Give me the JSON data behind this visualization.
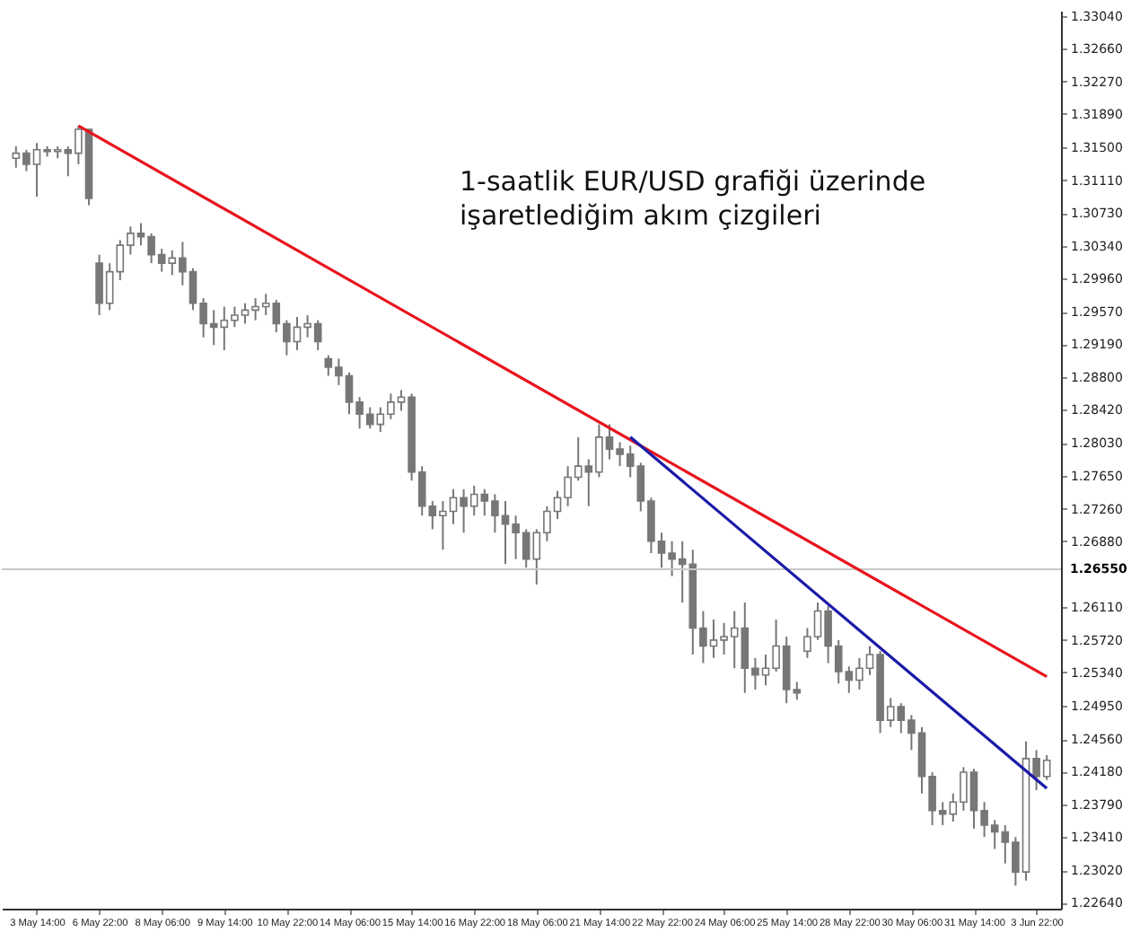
{
  "chart_data": {
    "type": "candlestick",
    "color": "#777777",
    "annotations": [
      "1-saatlik EUR/USD grafiği üzerinde\nişaretlediğim akım çizgileri"
    ],
    "categories": [
      null,
      null,
      "3 May 14:00",
      null,
      null,
      null,
      null,
      null,
      "6 May 22:00",
      null,
      null,
      null,
      null,
      null,
      "8 May 06:00",
      null,
      null,
      null,
      null,
      null,
      "9 May 14:00",
      null,
      null,
      null,
      null,
      null,
      "10 May 22:00",
      null,
      null,
      null,
      null,
      null,
      "14 May 06:00",
      null,
      null,
      null,
      null,
      null,
      "15 May 14:00",
      null,
      null,
      null,
      null,
      null,
      "16 May 22:00",
      null,
      null,
      null,
      null,
      null,
      "18 May 06:00",
      null,
      null,
      null,
      null,
      null,
      "21 May 14:00",
      null,
      null,
      null,
      null,
      null,
      "22 May 22:00",
      null,
      null,
      null,
      null,
      null,
      "24 May 06:00",
      null,
      null,
      null,
      null,
      null,
      "25 May 14:00",
      null,
      null,
      null,
      null,
      null,
      "28 May 22:00",
      null,
      null,
      null,
      null,
      null,
      "30 May 06:00",
      null,
      null,
      null,
      null,
      null,
      "31 May 14:00",
      null,
      null,
      null,
      null,
      null,
      "3 Jun 22:00",
      null
    ],
    "ohlc": [
      [
        1.3137,
        1.3151,
        1.3126,
        1.3143
      ],
      [
        1.3143,
        1.3147,
        1.3122,
        1.313
      ],
      [
        1.313,
        1.3155,
        1.3092,
        1.3147
      ],
      [
        1.3147,
        1.3151,
        1.3139,
        1.3145
      ],
      [
        1.3145,
        1.3151,
        1.3137,
        1.3147
      ],
      [
        1.3147,
        1.3151,
        1.3116,
        1.3143
      ],
      [
        1.3143,
        1.3175,
        1.313,
        1.3171
      ],
      [
        1.3171,
        1.3171,
        1.3082,
        1.309
      ],
      [
        1.3014,
        1.3024,
        1.2953,
        1.2967
      ],
      [
        1.2967,
        1.3014,
        1.2959,
        1.3004
      ],
      [
        1.3004,
        1.3041,
        1.2994,
        1.3035
      ],
      [
        1.3035,
        1.3057,
        1.3024,
        1.3049
      ],
      [
        1.3049,
        1.3061,
        1.3035,
        1.3045
      ],
      [
        1.3045,
        1.3049,
        1.3014,
        1.3024
      ],
      [
        1.3024,
        1.3031,
        1.3004,
        1.3014
      ],
      [
        1.3014,
        1.3029,
        1.3,
        1.302
      ],
      [
        1.302,
        1.3039,
        1.2988,
        1.3004
      ],
      [
        1.3004,
        1.3008,
        1.2959,
        1.2967
      ],
      [
        1.2967,
        1.2973,
        1.2927,
        1.2943
      ],
      [
        1.2943,
        1.2959,
        1.2918,
        1.2939
      ],
      [
        1.2939,
        1.2963,
        1.2912,
        1.2947
      ],
      [
        1.2947,
        1.2963,
        1.2939,
        1.2953
      ],
      [
        1.2953,
        1.2967,
        1.2943,
        1.2959
      ],
      [
        1.2959,
        1.2973,
        1.2947,
        1.2963
      ],
      [
        1.2963,
        1.2978,
        1.2953,
        1.2967
      ],
      [
        1.2967,
        1.2971,
        1.2933,
        1.2943
      ],
      [
        1.2943,
        1.2947,
        1.2906,
        1.2922
      ],
      [
        1.2922,
        1.2951,
        1.2912,
        1.2939
      ],
      [
        1.2939,
        1.2953,
        1.2927,
        1.2943
      ],
      [
        1.2943,
        1.2947,
        1.2912,
        1.2922
      ],
      [
        1.2902,
        1.2906,
        1.2882,
        1.2892
      ],
      [
        1.2892,
        1.2902,
        1.2871,
        1.2882
      ],
      [
        1.2882,
        1.2886,
        1.2837,
        1.2851
      ],
      [
        1.2851,
        1.2857,
        1.282,
        1.2837
      ],
      [
        1.2837,
        1.2845,
        1.282,
        1.2825
      ],
      [
        1.2825,
        1.2845,
        1.2816,
        1.2837
      ],
      [
        1.2837,
        1.2861,
        1.2831,
        1.2851
      ],
      [
        1.2851,
        1.2865,
        1.2841,
        1.2857
      ],
      [
        1.2857,
        1.2861,
        1.2759,
        1.2769
      ],
      [
        1.2769,
        1.2776,
        1.2718,
        1.2729
      ],
      [
        1.2729,
        1.2735,
        1.2702,
        1.2718
      ],
      [
        1.2718,
        1.2735,
        1.2678,
        1.2723
      ],
      [
        1.2723,
        1.2749,
        1.2708,
        1.2739
      ],
      [
        1.2739,
        1.2749,
        1.2698,
        1.2729
      ],
      [
        1.2729,
        1.2753,
        1.2718,
        1.2743
      ],
      [
        1.2743,
        1.2749,
        1.2718,
        1.2735
      ],
      [
        1.2735,
        1.2743,
        1.2698,
        1.2718
      ],
      [
        1.2718,
        1.2735,
        1.2661,
        1.2708
      ],
      [
        1.2708,
        1.2718,
        1.2667,
        1.2698
      ],
      [
        1.2698,
        1.2702,
        1.2657,
        1.2667
      ],
      [
        1.2667,
        1.2702,
        1.2637,
        1.2698
      ],
      [
        1.2698,
        1.2729,
        1.2688,
        1.2723
      ],
      [
        1.2723,
        1.2747,
        1.2714,
        1.2739
      ],
      [
        1.2739,
        1.2776,
        1.2729,
        1.2763
      ],
      [
        1.2763,
        1.281,
        1.2759,
        1.2776
      ],
      [
        1.2776,
        1.2784,
        1.2729,
        1.2769
      ],
      [
        1.2769,
        1.2825,
        1.2763,
        1.281
      ],
      [
        1.281,
        1.2825,
        1.2784,
        1.2796
      ],
      [
        1.2796,
        1.2804,
        1.2776,
        1.279
      ],
      [
        1.279,
        1.28,
        1.2763,
        1.2776
      ],
      [
        1.2776,
        1.278,
        1.2723,
        1.2735
      ],
      [
        1.2735,
        1.2739,
        1.2674,
        1.2688
      ],
      [
        1.2688,
        1.2698,
        1.2657,
        1.2674
      ],
      [
        1.2674,
        1.2688,
        1.2647,
        1.2667
      ],
      [
        1.2667,
        1.2688,
        1.2616,
        1.2661
      ],
      [
        1.2661,
        1.2678,
        1.2555,
        1.2586
      ],
      [
        1.2586,
        1.2606,
        1.2545,
        1.2565
      ],
      [
        1.2565,
        1.2596,
        1.2551,
        1.2572
      ],
      [
        1.2572,
        1.2592,
        1.2555,
        1.2576
      ],
      [
        1.2576,
        1.2606,
        1.2539,
        1.2586
      ],
      [
        1.2586,
        1.2616,
        1.251,
        1.2539
      ],
      [
        1.2539,
        1.2551,
        1.2514,
        1.2531
      ],
      [
        1.2531,
        1.2555,
        1.2519,
        1.2539
      ],
      [
        1.2539,
        1.2596,
        1.2535,
        1.2565
      ],
      [
        1.2565,
        1.2576,
        1.2498,
        1.2514
      ],
      [
        1.2514,
        1.2523,
        1.2502,
        1.251
      ],
      [
        1.2559,
        1.2586,
        1.2551,
        1.2576
      ],
      [
        1.2576,
        1.2616,
        1.2572,
        1.2606
      ],
      [
        1.2606,
        1.2612,
        1.2545,
        1.2565
      ],
      [
        1.2565,
        1.2572,
        1.2521,
        1.2535
      ],
      [
        1.2535,
        1.2541,
        1.251,
        1.2525
      ],
      [
        1.2525,
        1.2551,
        1.2514,
        1.2539
      ],
      [
        1.2539,
        1.2565,
        1.2531,
        1.2555
      ],
      [
        1.2555,
        1.2559,
        1.2463,
        1.2478
      ],
      [
        1.2478,
        1.2504,
        1.247,
        1.2494
      ],
      [
        1.2494,
        1.2498,
        1.2463,
        1.2478
      ],
      [
        1.2478,
        1.2484,
        1.2443,
        1.2463
      ],
      [
        1.2463,
        1.247,
        1.2392,
        1.2412
      ],
      [
        1.2412,
        1.2417,
        1.2355,
        1.2372
      ],
      [
        1.2372,
        1.2382,
        1.2355,
        1.2368
      ],
      [
        1.2368,
        1.2392,
        1.2359,
        1.2382
      ],
      [
        1.2382,
        1.2423,
        1.2372,
        1.2417
      ],
      [
        1.2417,
        1.2421,
        1.2351,
        1.2372
      ],
      [
        1.2372,
        1.2382,
        1.2341,
        1.2355
      ],
      [
        1.2355,
        1.2361,
        1.2327,
        1.2347
      ],
      [
        1.2347,
        1.2355,
        1.231,
        1.2335
      ],
      [
        1.2335,
        1.2341,
        1.2284,
        1.23
      ],
      [
        1.23,
        1.2453,
        1.229,
        1.2433
      ],
      [
        1.2433,
        1.2443,
        1.2396,
        1.2412
      ],
      [
        1.2412,
        1.2437,
        1.2408,
        1.2431
      ]
    ],
    "series": [
      {
        "type": "line",
        "color": "#e8141e",
        "values": [
          null,
          null,
          null,
          null,
          null,
          null,
          1.3175,
          null,
          null,
          null,
          null,
          null,
          null,
          null,
          null,
          null,
          null,
          null,
          null,
          null,
          null,
          null,
          null,
          null,
          null,
          null,
          null,
          null,
          null,
          null,
          null,
          null,
          null,
          null,
          null,
          null,
          null,
          null,
          null,
          null,
          null,
          null,
          null,
          null,
          null,
          null,
          null,
          null,
          null,
          null,
          null,
          null,
          null,
          null,
          null,
          null,
          null,
          null,
          null,
          null,
          null,
          null,
          null,
          null,
          null,
          null,
          null,
          null,
          null,
          null,
          null,
          null,
          null,
          null,
          null,
          null,
          null,
          null,
          null,
          null,
          null,
          null,
          null,
          null,
          null,
          null,
          null,
          null,
          null,
          null,
          null,
          null,
          null,
          null,
          null,
          null,
          null,
          null,
          null,
          1.2529
        ]
      },
      {
        "type": "line",
        "color": "#1a1aa8",
        "values": [
          null,
          null,
          null,
          null,
          null,
          null,
          null,
          null,
          null,
          null,
          null,
          null,
          null,
          null,
          null,
          null,
          null,
          null,
          null,
          null,
          null,
          null,
          null,
          null,
          null,
          null,
          null,
          null,
          null,
          null,
          null,
          null,
          null,
          null,
          null,
          null,
          null,
          null,
          null,
          null,
          null,
          null,
          null,
          null,
          null,
          null,
          null,
          null,
          null,
          null,
          null,
          null,
          null,
          null,
          null,
          null,
          null,
          null,
          null,
          1.281,
          null,
          null,
          null,
          null,
          null,
          null,
          null,
          null,
          null,
          null,
          null,
          null,
          null,
          null,
          null,
          null,
          null,
          null,
          null,
          null,
          null,
          null,
          null,
          null,
          null,
          null,
          null,
          null,
          null,
          null,
          null,
          null,
          null,
          null,
          null,
          null,
          null,
          null,
          null,
          1.2398
        ]
      }
    ],
    "ref_lines": [
      {
        "axis": "y",
        "value": 1.2655,
        "label": "1.26550",
        "color": "#c8c8c8"
      }
    ],
    "ylim": [
      1.2257,
      1.331
    ],
    "yticks": [
      {
        "value": 1.3304,
        "label": "1.33040"
      },
      {
        "value": 1.3266,
        "label": "1.32660"
      },
      {
        "value": 1.3227,
        "label": "1.32270"
      },
      {
        "value": 1.3189,
        "label": "1.31890"
      },
      {
        "value": 1.315,
        "label": "1.31500"
      },
      {
        "value": 1.3111,
        "label": "1.31110"
      },
      {
        "value": 1.3073,
        "label": "1.30730"
      },
      {
        "value": 1.3034,
        "label": "1.30340"
      },
      {
        "value": 1.2996,
        "label": "1.29960"
      },
      {
        "value": 1.2957,
        "label": "1.29570"
      },
      {
        "value": 1.2919,
        "label": "1.29190"
      },
      {
        "value": 1.288,
        "label": "1.28800"
      },
      {
        "value": 1.2842,
        "label": "1.28420"
      },
      {
        "value": 1.2803,
        "label": "1.28030"
      },
      {
        "value": 1.2765,
        "label": "1.27650"
      },
      {
        "value": 1.2726,
        "label": "1.27260"
      },
      {
        "value": 1.2688,
        "label": "1.26880"
      },
      {
        "value": 1.2611,
        "label": "1.26110"
      },
      {
        "value": 1.2572,
        "label": "1.25720"
      },
      {
        "value": 1.2534,
        "label": "1.25340"
      },
      {
        "value": 1.2495,
        "label": "1.24950"
      },
      {
        "value": 1.2456,
        "label": "1.24560"
      },
      {
        "value": 1.2418,
        "label": "1.24180"
      },
      {
        "value": 1.2379,
        "label": "1.23790"
      },
      {
        "value": 1.2341,
        "label": "1.23410"
      },
      {
        "value": 1.2302,
        "label": "1.23020"
      },
      {
        "value": 1.2264,
        "label": "1.22640"
      }
    ]
  }
}
